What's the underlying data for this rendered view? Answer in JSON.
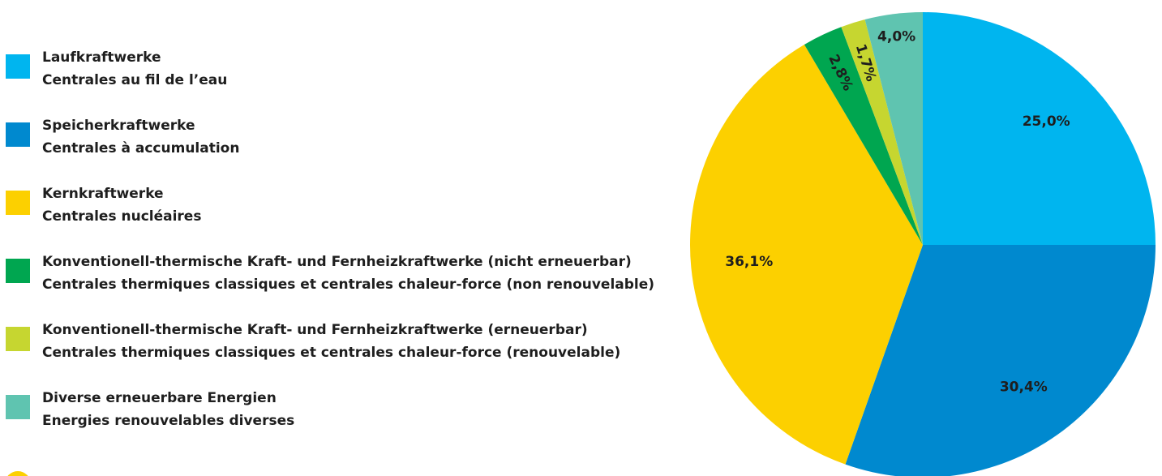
{
  "chart_data": {
    "type": "pie",
    "categories": [
      [
        "Laufkraftwerke",
        "Centrales au fil de l’eau"
      ],
      [
        "Speicherkraftwerke",
        "Centrales à accumulation"
      ],
      [
        "Kernkraftwerke",
        "Centrales nucléaires"
      ],
      [
        "Konventionell-thermische Kraft- und Fernheizkraftwerke (nicht erneuerbar)",
        "Centrales thermiques classiques et centrales chaleur-force (non renouvelable)"
      ],
      [
        "Konventionell-thermische Kraft- und Fernheizkraftwerke (erneuerbar)",
        "Centrales thermiques classiques et centrales chaleur-force (renouvelable)"
      ],
      [
        "Diverse erneuerbare Energien",
        "Energies renouvelables diverses"
      ]
    ],
    "values": [
      25.0,
      30.4,
      36.1,
      2.8,
      1.7,
      4.0
    ],
    "value_labels": [
      "25,0%",
      "30,4%",
      "36,1%",
      "2,8%",
      "1,7%",
      "4,0%"
    ],
    "colors": [
      "#00b5ef",
      "#0089cf",
      "#fcd000",
      "#00a650",
      "#c6d630",
      "#5fc4b0"
    ],
    "legend": "left"
  }
}
